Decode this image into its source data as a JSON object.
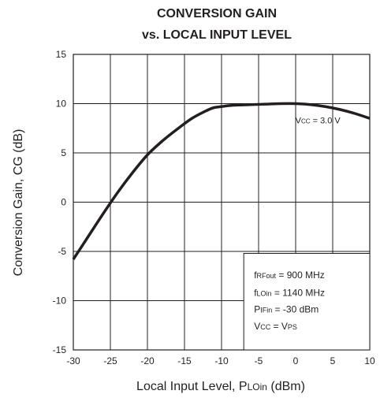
{
  "chart_data": {
    "type": "line",
    "title_line1": "CONVERSION GAIN",
    "title_line2": "vs. LOCAL INPUT LEVEL",
    "xlabel": {
      "main": "Local Input Level, P",
      "sub": "LOin",
      "unit": " (dBm)"
    },
    "ylabel": "Conversion Gain, CG (dB)",
    "xlim": [
      -30,
      10
    ],
    "ylim": [
      -15,
      15
    ],
    "x_ticks": [
      "-30",
      "-25",
      "-20",
      "-15",
      "-10",
      "-5",
      "0",
      "5",
      "10"
    ],
    "y_ticks": [
      "15",
      "10",
      "5",
      "0",
      "-5",
      "-10",
      "-15"
    ],
    "grid": true,
    "series": [
      {
        "x": [
          -30,
          -28,
          -26,
          -24,
          -22,
          -20,
          -18,
          -16,
          -14,
          -12,
          -11,
          -10,
          -9,
          -8,
          -6,
          -4,
          -2,
          0,
          2,
          4,
          6,
          8,
          10
        ],
        "y": [
          -5.8,
          -3.5,
          -1.2,
          1.0,
          3.0,
          4.8,
          6.2,
          7.4,
          8.5,
          9.3,
          9.6,
          9.7,
          9.8,
          9.85,
          9.9,
          9.95,
          10.0,
          10.0,
          9.9,
          9.7,
          9.4,
          9.0,
          8.5
        ]
      }
    ],
    "curve_label": {
      "x": 3,
      "y": 8,
      "v": "V",
      "sub": "CC",
      "rest": " = 3.0 V"
    },
    "conditions_box": {
      "range": {
        "x": [
          -7,
          10
        ],
        "y": [
          -15,
          -5.2
        ]
      },
      "lines": [
        {
          "y": -7.7,
          "parts": [
            {
              "t": "f",
              "s": false
            },
            {
              "t": "RFout",
              "s": true
            },
            {
              "t": " = 900 MHz",
              "s": false
            }
          ]
        },
        {
          "y": -9.5,
          "parts": [
            {
              "t": "f",
              "s": false
            },
            {
              "t": "LOin",
              "s": true
            },
            {
              "t": " = 1140 MHz",
              "s": false
            }
          ]
        },
        {
          "y": -11.2,
          "parts": [
            {
              "t": "P",
              "s": false
            },
            {
              "t": "IFin",
              "s": true
            },
            {
              "t": " = -30 dBm",
              "s": false
            }
          ]
        },
        {
          "y": -12.9,
          "parts": [
            {
              "t": "V",
              "s": false
            },
            {
              "t": "CC",
              "s": true
            },
            {
              "t": " = V",
              "s": false
            },
            {
              "t": "PS",
              "s": true
            }
          ]
        }
      ]
    }
  }
}
